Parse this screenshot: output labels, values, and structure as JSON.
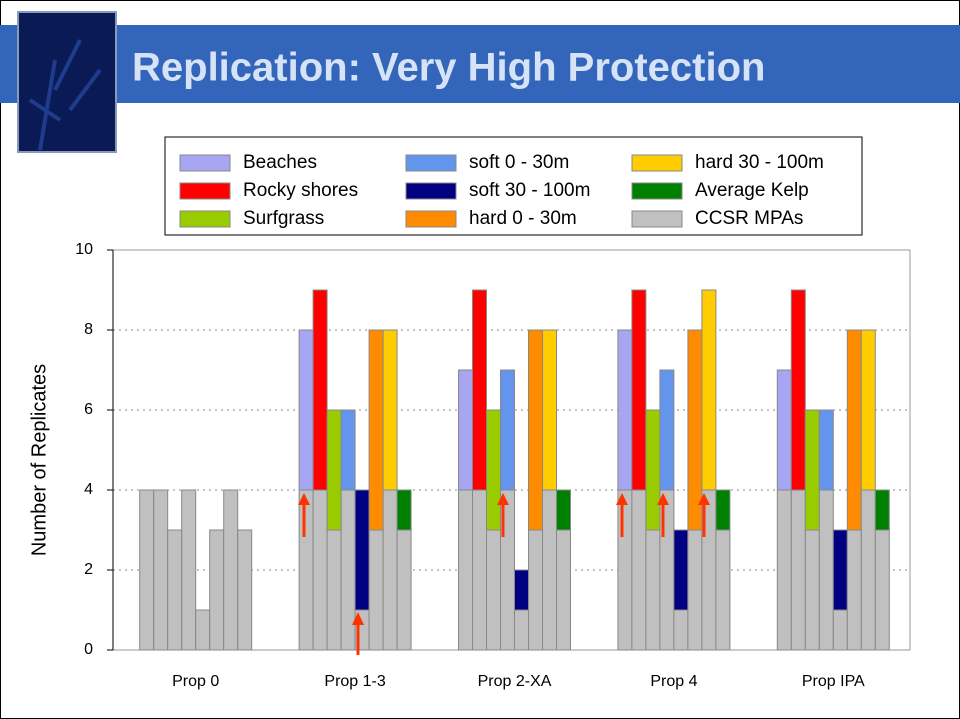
{
  "title": "Replication: Very High Protection",
  "chart_data": {
    "type": "bar",
    "y_label": "Number of Replicates",
    "categories": [
      "Prop 0",
      "Prop 1-3",
      "Prop 2-XA",
      "Prop 4",
      "Prop IPA"
    ],
    "base": {
      "name": "CCSR MPAs",
      "color": "#c0c0c0",
      "values": [
        4,
        4,
        3,
        4,
        1,
        3,
        4,
        3
      ]
    },
    "series": [
      {
        "name": "Beaches",
        "color": "#a6a6f2",
        "values": [
          null,
          4,
          3,
          4,
          3
        ]
      },
      {
        "name": "Rocky shores",
        "color": "#ff0000",
        "values": [
          null,
          5,
          5,
          5,
          5
        ]
      },
      {
        "name": "Surfgrass",
        "color": "#99cc00",
        "values": [
          null,
          3,
          3,
          3,
          3
        ]
      },
      {
        "name": "soft 0 - 30m",
        "color": "#6495ed",
        "values": [
          null,
          2,
          3,
          3,
          2
        ]
      },
      {
        "name": "soft 30 - 100m",
        "color": "#000080",
        "values": [
          null,
          3,
          1,
          2,
          2
        ]
      },
      {
        "name": "hard 0 - 30m",
        "color": "#ff8c00",
        "values": [
          null,
          5,
          5,
          5,
          5
        ]
      },
      {
        "name": "hard 30 - 100m",
        "color": "#ffcc00",
        "values": [
          null,
          4,
          4,
          5,
          4
        ]
      },
      {
        "name": "Average Kelp",
        "color": "#008000",
        "values": [
          null,
          1,
          1,
          1,
          1
        ]
      }
    ],
    "ylim": [
      0,
      10
    ],
    "yticks": [
      0,
      2,
      4,
      6,
      8,
      10
    ],
    "grid": true
  }
}
